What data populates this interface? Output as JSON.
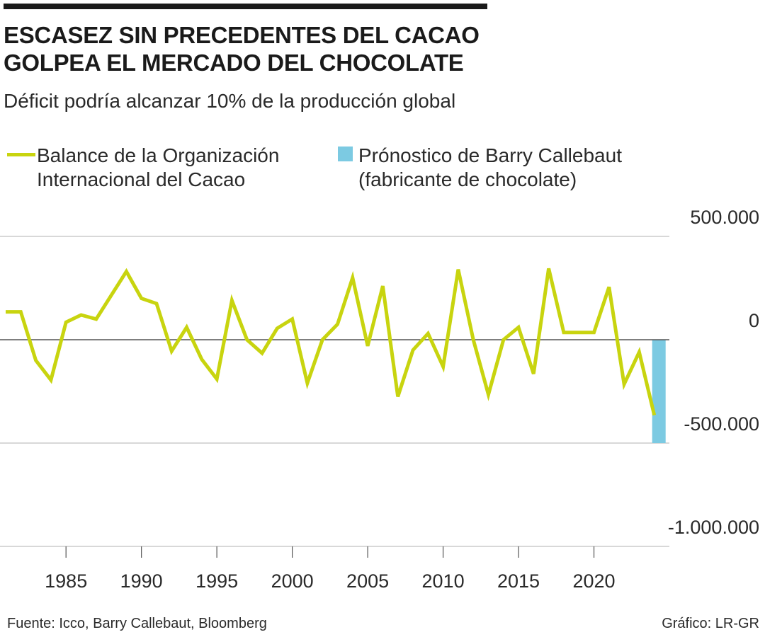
{
  "header": {
    "title_line1": "ESCASEZ SIN PRECEDENTES DEL CACAO",
    "title_line2": "GOLPEA EL MERCADO DEL CHOCOLATE",
    "subtitle": "Déficit podría alcanzar 10% de la producción global"
  },
  "legend": {
    "line_label_line1": "Balance de la Organización",
    "line_label_line2": "Internacional del Cacao",
    "bar_label_line1": "Prónostico de Barry Callebaut",
    "bar_label_line2": "(fabricante de chocolate)"
  },
  "footer": {
    "source": "Fuente: Icco, Barry Callebaut, Bloomberg",
    "credit": "Gráfico: LR-GR"
  },
  "colors": {
    "line": "#c8d40f",
    "forecast_bar": "#7ccae2",
    "grid": "#cccccc",
    "zero_line": "#555555",
    "text": "#2a2a2a"
  },
  "chart_data": {
    "type": "line",
    "title": "ESCASEZ SIN PRECEDENTES DEL CACAO GOLPEA EL MERCADO DEL CHOCOLATE",
    "subtitle": "Déficit podría alcanzar 10% de la producción global",
    "xlabel": "",
    "ylabel": "",
    "xlim": [
      1981,
      2025
    ],
    "ylim": [
      -1000000,
      500000
    ],
    "x_ticks": [
      1985,
      1990,
      1995,
      2000,
      2005,
      2010,
      2015,
      2020
    ],
    "x_tick_labels": [
      "1985",
      "1990",
      "1995",
      "2000",
      "2005",
      "2010",
      "2015",
      "2020"
    ],
    "y_ticks": [
      500000,
      0,
      -500000,
      -1000000
    ],
    "y_tick_labels": [
      "500.000",
      "0",
      "-500.000",
      "-1.000.000"
    ],
    "grid": "horizontal",
    "legend_position": "top",
    "series": [
      {
        "name": "Balance de la Organización Internacional del Cacao",
        "type": "line",
        "x": [
          1981,
          1982,
          1983,
          1984,
          1985,
          1986,
          1987,
          1988,
          1989,
          1990,
          1991,
          1992,
          1993,
          1994,
          1995,
          1996,
          1997,
          1998,
          1999,
          2000,
          2001,
          2002,
          2003,
          2004,
          2005,
          2006,
          2007,
          2008,
          2009,
          2010,
          2011,
          2012,
          2013,
          2014,
          2015,
          2016,
          2017,
          2018,
          2019,
          2020,
          2021,
          2022,
          2023,
          2024
        ],
        "values": [
          135000,
          135000,
          -100000,
          -195000,
          85000,
          120000,
          100000,
          215000,
          330000,
          200000,
          175000,
          -55000,
          60000,
          -95000,
          -190000,
          190000,
          0,
          -65000,
          55000,
          100000,
          -210000,
          0,
          75000,
          300000,
          -30000,
          260000,
          -275000,
          -50000,
          30000,
          -130000,
          340000,
          0,
          -265000,
          0,
          60000,
          -165000,
          345000,
          35000,
          35000,
          35000,
          255000,
          -215000,
          -60000,
          -365000
        ]
      },
      {
        "name": "Prónostico de Barry Callebaut (fabricante de chocolate)",
        "type": "bar",
        "x": [
          2024
        ],
        "values": [
          -500000
        ]
      }
    ]
  }
}
